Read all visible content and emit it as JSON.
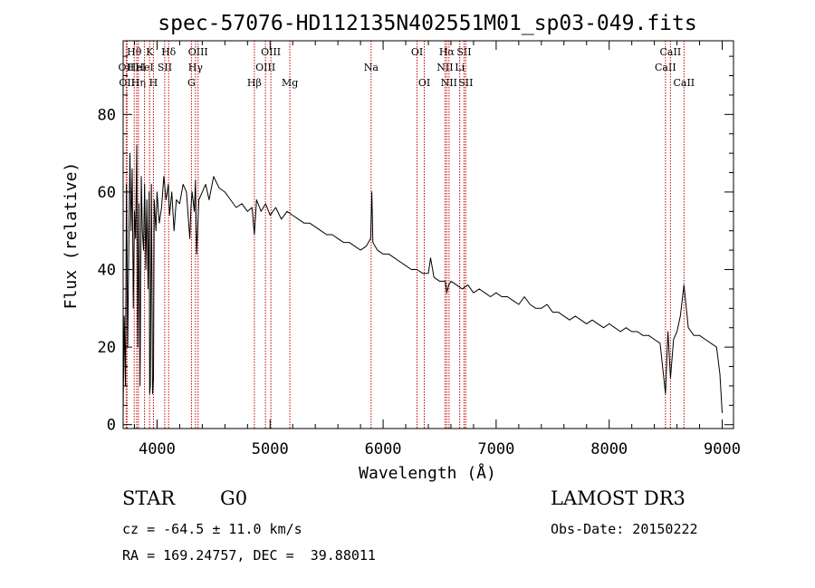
{
  "chart_data": {
    "type": "line",
    "title": "spec-57076-HD112135N402551M01_sp03-049.fits",
    "xlabel": "Wavelength (Å)",
    "ylabel": "Flux (relative)",
    "xlim": [
      3700,
      9100
    ],
    "ylim": [
      -1,
      99
    ],
    "xticks": [
      4000,
      5000,
      6000,
      7000,
      8000,
      9000
    ],
    "yticks": [
      0,
      20,
      40,
      60,
      80
    ],
    "series": [
      {
        "name": "flux",
        "x": [
          3700,
          3710,
          3720,
          3730,
          3740,
          3750,
          3760,
          3770,
          3780,
          3790,
          3800,
          3810,
          3820,
          3830,
          3840,
          3850,
          3860,
          3870,
          3880,
          3890,
          3900,
          3910,
          3920,
          3930,
          3935,
          3940,
          3950,
          3960,
          3968,
          3975,
          3990,
          4000,
          4020,
          4040,
          4060,
          4080,
          4100,
          4110,
          4130,
          4150,
          4170,
          4200,
          4230,
          4260,
          4290,
          4300,
          4310,
          4330,
          4340,
          4350,
          4370,
          4400,
          4430,
          4460,
          4500,
          4550,
          4600,
          4650,
          4700,
          4750,
          4800,
          4840,
          4861,
          4880,
          4920,
          4960,
          5000,
          5050,
          5100,
          5150,
          5200,
          5250,
          5300,
          5350,
          5400,
          5450,
          5500,
          5550,
          5600,
          5650,
          5700,
          5750,
          5800,
          5850,
          5890,
          5900,
          5910,
          5950,
          6000,
          6050,
          6100,
          6150,
          6200,
          6250,
          6300,
          6350,
          6400,
          6420,
          6450,
          6500,
          6550,
          6563,
          6580,
          6600,
          6650,
          6700,
          6750,
          6800,
          6850,
          6900,
          6950,
          7000,
          7050,
          7100,
          7150,
          7200,
          7250,
          7300,
          7350,
          7400,
          7450,
          7500,
          7550,
          7600,
          7650,
          7700,
          7750,
          7800,
          7850,
          7900,
          7950,
          8000,
          8050,
          8100,
          8150,
          8200,
          8250,
          8300,
          8350,
          8400,
          8450,
          8498,
          8520,
          8542,
          8570,
          8600,
          8630,
          8662,
          8700,
          8750,
          8800,
          8850,
          8900,
          8950,
          8980,
          9000
        ],
        "values": [
          3,
          28,
          10,
          62,
          20,
          45,
          70,
          50,
          66,
          30,
          55,
          48,
          72,
          20,
          57,
          10,
          64,
          50,
          45,
          62,
          40,
          58,
          35,
          60,
          8,
          10,
          62,
          8,
          12,
          58,
          50,
          60,
          52,
          56,
          64,
          58,
          62,
          54,
          60,
          50,
          58,
          57,
          62,
          60,
          48,
          56,
          60,
          55,
          63,
          44,
          58,
          60,
          62,
          58,
          64,
          61,
          60,
          58,
          56,
          57,
          55,
          56,
          49,
          58,
          55,
          57,
          54,
          56,
          53,
          55,
          54,
          53,
          52,
          52,
          51,
          50,
          49,
          49,
          48,
          47,
          47,
          46,
          45,
          46,
          48,
          60,
          47,
          45,
          44,
          44,
          43,
          42,
          41,
          40,
          40,
          39,
          39,
          43,
          38,
          37,
          37,
          34,
          36,
          37,
          36,
          35,
          36,
          34,
          35,
          34,
          33,
          34,
          33,
          33,
          32,
          31,
          33,
          31,
          30,
          30,
          31,
          29,
          29,
          28,
          27,
          28,
          27,
          26,
          27,
          26,
          25,
          26,
          25,
          24,
          25,
          24,
          24,
          23,
          23,
          22,
          21,
          8,
          24,
          12,
          22,
          24,
          28,
          36,
          25,
          23,
          23,
          22,
          21,
          20,
          13,
          3
        ]
      }
    ],
    "line_markers": [
      {
        "wavelength": 3727,
        "label": "OII",
        "row": 2
      },
      {
        "wavelength": 3734,
        "label": "OII",
        "row": 3
      },
      {
        "wavelength": 3798,
        "label": "Hθ",
        "row": 1
      },
      {
        "wavelength": 3820,
        "label": "HeI",
        "row": 2
      },
      {
        "wavelength": 3835,
        "label": "Hη",
        "row": 3
      },
      {
        "wavelength": 3889,
        "label": "HeI",
        "row": 2
      },
      {
        "wavelength": 3934,
        "label": "K",
        "row": 1
      },
      {
        "wavelength": 3968,
        "label": "H",
        "row": 3
      },
      {
        "wavelength": 4068,
        "label": "SII",
        "row": 2
      },
      {
        "wavelength": 4102,
        "label": "Hδ",
        "row": 1
      },
      {
        "wavelength": 4304,
        "label": "G",
        "row": 3
      },
      {
        "wavelength": 4340,
        "label": "Hγ",
        "row": 2
      },
      {
        "wavelength": 4363,
        "label": "OIII",
        "row": 1
      },
      {
        "wavelength": 4861,
        "label": "Hβ",
        "row": 3
      },
      {
        "wavelength": 4959,
        "label": "OIII",
        "row": 2
      },
      {
        "wavelength": 5007,
        "label": "OIII",
        "row": 1
      },
      {
        "wavelength": 5175,
        "label": "Mg",
        "row": 3
      },
      {
        "wavelength": 5894,
        "label": "Na",
        "row": 2
      },
      {
        "wavelength": 6300,
        "label": "OI",
        "row": 1
      },
      {
        "wavelength": 6364,
        "label": "OI",
        "row": 3
      },
      {
        "wavelength": 6548,
        "label": "NII",
        "row": 2
      },
      {
        "wavelength": 6563,
        "label": "Hα",
        "row": 1
      },
      {
        "wavelength": 6583,
        "label": "NII",
        "row": 3
      },
      {
        "wavelength": 6678,
        "label": "Li",
        "row": 2
      },
      {
        "wavelength": 6716,
        "label": "SII",
        "row": 1
      },
      {
        "wavelength": 6731,
        "label": "SII",
        "row": 3
      },
      {
        "wavelength": 8498,
        "label": "CaII",
        "row": 2
      },
      {
        "wavelength": 8542,
        "label": "CaII",
        "row": 1
      },
      {
        "wavelength": 8662,
        "label": "CaII",
        "row": 3
      }
    ]
  },
  "info": {
    "object_class": "STAR",
    "subclass": "G0",
    "survey": "LAMOST DR3",
    "redshift": "cz = -64.5 ± 11.0 km/s",
    "obs_date": "Obs-Date: 20150222",
    "coords": "RA = 169.24757, DEC =  39.88011"
  },
  "colors": {
    "marker": "#c00000",
    "spectrum": "#000000",
    "axis": "#000000"
  }
}
